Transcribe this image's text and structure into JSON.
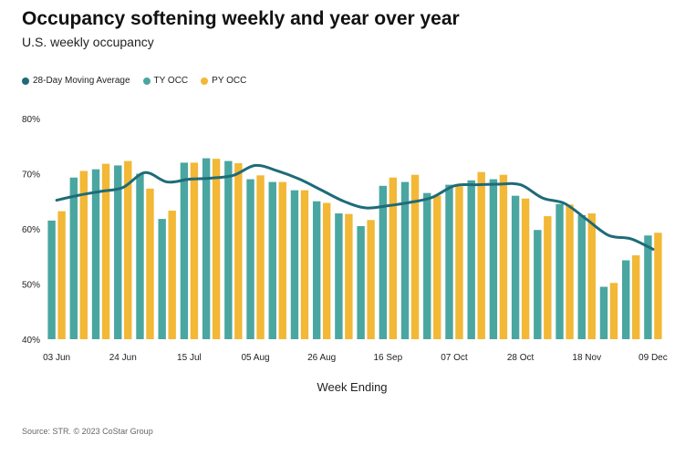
{
  "title": "Occupancy softening weekly and year over year",
  "subtitle": "U.S. weekly occupancy",
  "source": "Source: STR. © 2023 CoStar Group",
  "colors": {
    "ty": "#4aa6a0",
    "py": "#f2b836",
    "ma": "#1f6b78"
  },
  "chart_data": {
    "type": "bar",
    "xlabel": "Week Ending",
    "ylabel": "",
    "ylim": [
      40,
      80
    ],
    "yticks": [
      "40%",
      "50%",
      "60%",
      "70%",
      "80%"
    ],
    "grid": false,
    "legend_position": "top-left",
    "categories": [
      "03 Jun",
      "10 Jun",
      "17 Jun",
      "24 Jun",
      "01 Jul",
      "08 Jul",
      "15 Jul",
      "22 Jul",
      "29 Jul",
      "05 Aug",
      "12 Aug",
      "19 Aug",
      "26 Aug",
      "02 Sep",
      "09 Sep",
      "16 Sep",
      "23 Sep",
      "30 Sep",
      "07 Oct",
      "14 Oct",
      "21 Oct",
      "28 Oct",
      "04 Nov",
      "11 Nov",
      "18 Nov",
      "25 Nov",
      "02 Dec",
      "09 Dec"
    ],
    "tick_labels": [
      "03 Jun",
      "24 Jun",
      "15 Jul",
      "05 Aug",
      "26 Aug",
      "16 Sep",
      "07 Oct",
      "28 Oct",
      "18 Nov",
      "09 Dec"
    ],
    "series": [
      {
        "name": "28-Day Moving Average",
        "type": "line",
        "values": [
          65.2,
          66.1,
          66.8,
          67.5,
          70.2,
          68.5,
          69.0,
          69.2,
          69.7,
          71.5,
          70.5,
          69.0,
          67.0,
          65.0,
          63.8,
          64.2,
          64.8,
          65.7,
          67.8,
          68.0,
          68.1,
          68.0,
          65.6,
          64.6,
          61.7,
          58.8,
          58.2,
          56.3
        ]
      },
      {
        "name": "TY OCC",
        "type": "bar",
        "values": [
          61.5,
          69.3,
          70.8,
          71.5,
          70.0,
          61.8,
          72.0,
          72.8,
          72.3,
          69.0,
          68.5,
          67.0,
          65.0,
          62.8,
          60.5,
          67.8,
          68.5,
          66.5,
          68.0,
          68.8,
          69.0,
          66.0,
          59.8,
          64.5,
          62.5,
          49.5,
          54.3,
          58.8
        ]
      },
      {
        "name": "PY OCC",
        "type": "bar",
        "values": [
          63.2,
          70.5,
          71.8,
          72.3,
          67.3,
          63.3,
          72.0,
          72.7,
          71.9,
          69.7,
          68.5,
          67.0,
          64.7,
          62.7,
          61.6,
          69.3,
          69.8,
          66.0,
          67.7,
          70.3,
          69.8,
          65.5,
          62.3,
          64.4,
          62.8,
          50.2,
          55.2,
          59.3
        ]
      }
    ]
  }
}
